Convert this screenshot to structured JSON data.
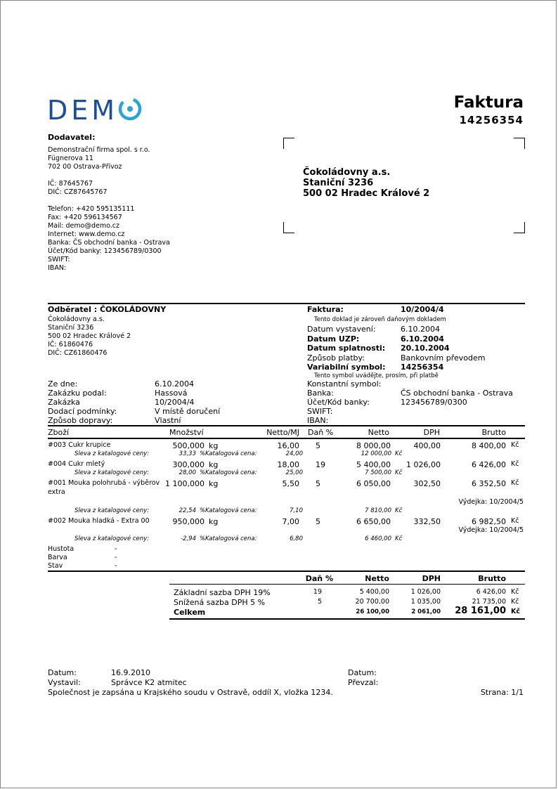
{
  "logo": {
    "text": "DEMO",
    "colors": {
      "dem": "#1b4f9c",
      "o": "#27a4dd"
    }
  },
  "title": "Faktura",
  "number": "14256354",
  "supplier": {
    "heading": "Dodavatel:",
    "lines": [
      "Demonstrační firma spol. s r.o.",
      "Fügnerova 11",
      "702 00 Ostrava-Přívoz",
      "",
      "IČ: 87645767",
      "DIČ: CZ87645767",
      "",
      "Telefon: +420  595135111",
      "Fax: +420  596134567",
      "Mail: demo@demo.cz",
      "Internet: www.demo.cz",
      "Banka: ČS obchodní banka - Ostrava",
      "Účet/Kód banky: 123456789/0300",
      "SWIFT:",
      "IBAN:"
    ]
  },
  "recipient_address": [
    "Čokoládovny a.s.",
    "Staniční 3236",
    "500 02  Hradec Králové 2"
  ],
  "customer": {
    "heading": "Odběratel : ČOKOLÁDOVNY",
    "lines": [
      "Čokoládovny a.s.",
      "Staniční 3236",
      "500 02  Hradec Králové 2",
      "IČ: 61860476",
      "DIČ: CZ61860476"
    ]
  },
  "order": [
    {
      "label": "Ze dne:",
      "value": "6.10.2004"
    },
    {
      "label": "Zakázku podal:",
      "value": "Hassová"
    },
    {
      "label": "Zakázka",
      "value": "10/2004/4"
    },
    {
      "label": "Dodací podmínky:",
      "value": "V místě doručení"
    },
    {
      "label": "Způsob dopravy:",
      "value": "Vlastní"
    }
  ],
  "invoice": {
    "label": "Faktura:",
    "value": "10/2004/4",
    "tax_note": "Tento doklad je zároveň daňovým dokladem",
    "fields": [
      {
        "label": "Datum vystavení:",
        "value": "6.10.2004",
        "bold": false
      },
      {
        "label": "Datum UZP:",
        "value": "6.10.2004",
        "bold": true
      },
      {
        "label": "Datum splatnosti:",
        "value": "20.10.2004",
        "bold": true
      },
      {
        "label": "Způsob platby:",
        "value": "Bankovním převodem",
        "bold": false
      },
      {
        "label": "Variabilní symbol:",
        "value": "14256354",
        "bold": true
      }
    ],
    "symbol_note": "Tento symbol uvádějte, prosím, při platbě",
    "bank_fields": [
      {
        "label": "Konstantní symbol:",
        "value": ""
      },
      {
        "label": "Banka:",
        "value": "ČS obchodní banka - Ostrava"
      },
      {
        "label": "Účet/Kód banky:",
        "value": "123456789/0300"
      },
      {
        "label": "SWIFT:",
        "value": ""
      },
      {
        "label": "IBAN:",
        "value": ""
      }
    ]
  },
  "items_header": {
    "item": "Zboží",
    "qty": "Množství",
    "unit_price": "Netto/MJ",
    "tax": "Daň %",
    "net": "Netto",
    "vat": "DPH",
    "gross": "Brutto"
  },
  "discount_label": "Sleva z katalogové ceny:",
  "catalog_label": "Katalogová cena:",
  "currency": "Kč",
  "pct": "%",
  "items": [
    {
      "name": "#003 Cukr krupice",
      "name2": "",
      "qty": "500,000",
      "unit": "kg",
      "unit_price": "16,00",
      "tax": "5",
      "net": "8 000,00",
      "vat": "400,00",
      "gross": "8 400,00",
      "issue": "",
      "discount": "33,33",
      "catalog_price": "24,00",
      "catalog_total": "12 000,00"
    },
    {
      "name": "#004 Cukr mletý",
      "name2": "",
      "qty": "300,000",
      "unit": "kg",
      "unit_price": "18,00",
      "tax": "19",
      "net": "5 400,00",
      "vat": "1 026,00",
      "gross": "6 426,00",
      "issue": "",
      "discount": "28,00",
      "catalog_price": "25,00",
      "catalog_total": "7 500,00"
    },
    {
      "name": "#001 Mouka polohrubá - výběrov",
      "name2": "extra",
      "qty": "1 100,000",
      "unit": "kg",
      "unit_price": "5,50",
      "tax": "5",
      "net": "6 050,00",
      "vat": "302,50",
      "gross": "6 352,50",
      "issue": "Výdejka: 10/2004/5",
      "discount": "22,54",
      "catalog_price": "7,10",
      "catalog_total": "7 810,00"
    },
    {
      "name": "#002 Mouka hladká - Extra 00",
      "name2": "",
      "qty": "950,000",
      "unit": "kg",
      "unit_price": "7,00",
      "tax": "5",
      "net": "6 650,00",
      "vat": "332,50",
      "gross": "6 982,50",
      "issue": "Výdejka: 10/2004/5",
      "discount": "-2,94",
      "catalog_price": "6,80",
      "catalog_total": "6 460,00"
    }
  ],
  "attributes": [
    {
      "label": "Hustota",
      "value": "-"
    },
    {
      "label": "Barva",
      "value": "-"
    },
    {
      "label": "Stav",
      "value": "-"
    }
  ],
  "summary": {
    "header": {
      "tax": "Daň %",
      "net": "Netto",
      "vat": "DPH",
      "gross": "Brutto"
    },
    "rows": [
      {
        "label": "Základní sazba DPH 19%",
        "tax": "19",
        "net": "5 400,00",
        "vat": "1 026,00",
        "gross": "6 426,00"
      },
      {
        "label": "Snížená sazba DPH 5 %",
        "tax": "5",
        "net": "20 700,00",
        "vat": "1 035,00",
        "gross": "21 735,00"
      }
    ],
    "total": {
      "label": "Celkem",
      "net": "26 100,00",
      "vat": "2 061,00",
      "gross": "28 161,00"
    }
  },
  "footer": {
    "date_label": "Datum:",
    "date": "16.9.2010",
    "issued_label": "Vystavil:",
    "issued_by": "Správce K2 atmitec",
    "date2_label": "Datum:",
    "received_label": "Převzal:",
    "registry": "Společnost je zapsána u Krajského soudu v Ostravě, oddíl X, vložka 1234.",
    "page": "Strana: 1/1"
  }
}
